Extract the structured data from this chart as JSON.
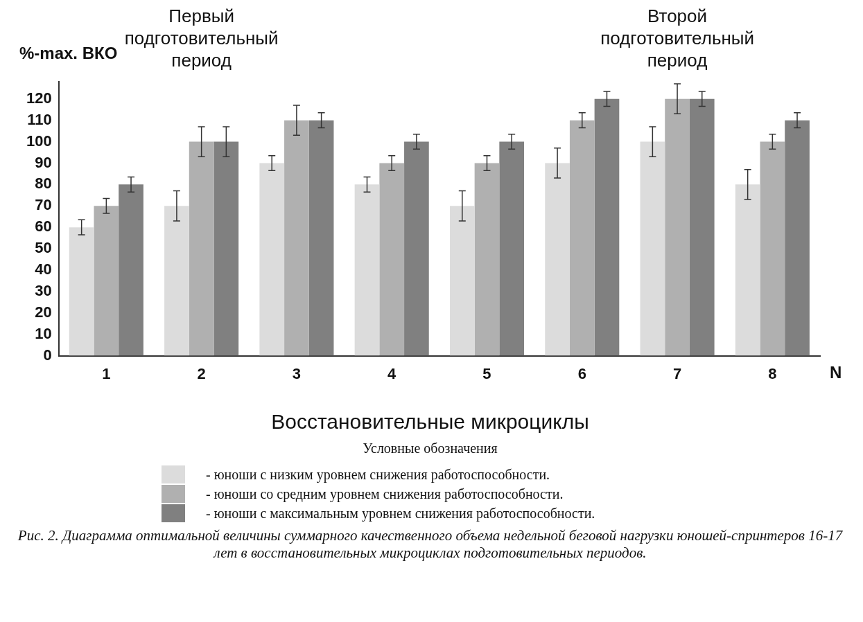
{
  "chart_data": {
    "type": "bar",
    "ylabel": "%-max. ВКО",
    "xlabel": "N",
    "legend_title": "Условные обозначения",
    "legend": "bottom",
    "categories": [
      "1",
      "2",
      "3",
      "4",
      "5",
      "6",
      "7",
      "8"
    ],
    "series": [
      {
        "name": "- юноши с низким уровнем снижения работоспособности.",
        "color": "#dcdcdc",
        "values": [
          60,
          70,
          90,
          80,
          70,
          90,
          100,
          80
        ],
        "errors": [
          3.5,
          7,
          3.5,
          3.5,
          7,
          7,
          7,
          7
        ]
      },
      {
        "name": "- юноши со средним уровнем снижения работоспособности.",
        "color": "#b0b0b0",
        "values": [
          70,
          100,
          110,
          90,
          90,
          110,
          120,
          100
        ],
        "errors": [
          3.5,
          7,
          7,
          3.5,
          3.5,
          3.5,
          7,
          3.5
        ]
      },
      {
        "name": "- юноши с максимальным уровнем снижения работоспособности.",
        "color": "#808080",
        "values": [
          80,
          100,
          110,
          100,
          100,
          120,
          120,
          110
        ],
        "errors": [
          3.5,
          7,
          3.5,
          3.5,
          3.5,
          3.5,
          3.5,
          3.5
        ]
      }
    ],
    "ylim": [
      0,
      128
    ],
    "yticks": [
      0,
      10,
      20,
      30,
      40,
      50,
      60,
      70,
      80,
      90,
      100,
      110,
      120
    ],
    "grid": false,
    "annotations": [
      "Первый подготовительный период",
      "Второй подготовительный период",
      "Восстановительные микроциклы",
      "Рис. 2. Диаграмма оптимальной величины суммарного качественного объема недельной беговой нагрузки юношей-спринтеров 16-17 лет в восстановительных микроциклах подготовительных периодов."
    ]
  }
}
